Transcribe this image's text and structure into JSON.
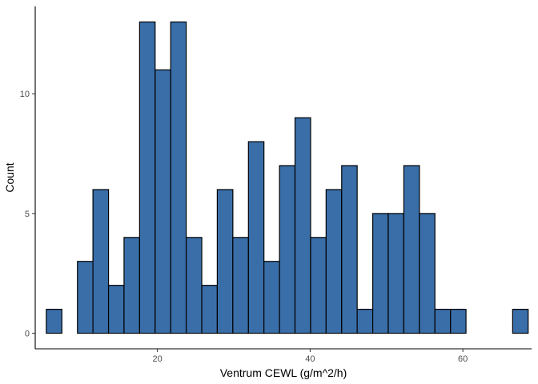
{
  "chart_data": {
    "type": "bar",
    "subtype": "histogram",
    "title": "",
    "xlabel": "Ventrum CEWL (g/m^2/h)",
    "ylabel": "Count",
    "xlim": [
      4.0,
      69.0
    ],
    "ylim": [
      -0.65,
      13.65
    ],
    "x_ticks": [
      20,
      40,
      60
    ],
    "y_ticks": [
      0,
      5,
      10
    ],
    "grid": false,
    "bin_width": 2.035,
    "bins": [
      {
        "x_start": 5.45,
        "x_end": 7.49,
        "count": 1
      },
      {
        "x_start": 7.49,
        "x_end": 9.53,
        "count": 0
      },
      {
        "x_start": 9.53,
        "x_end": 11.56,
        "count": 3
      },
      {
        "x_start": 11.56,
        "x_end": 13.6,
        "count": 6
      },
      {
        "x_start": 13.6,
        "x_end": 15.63,
        "count": 2
      },
      {
        "x_start": 15.63,
        "x_end": 17.67,
        "count": 4
      },
      {
        "x_start": 17.67,
        "x_end": 19.7,
        "count": 13
      },
      {
        "x_start": 19.7,
        "x_end": 21.74,
        "count": 11
      },
      {
        "x_start": 21.74,
        "x_end": 23.77,
        "count": 13
      },
      {
        "x_start": 23.77,
        "x_end": 25.81,
        "count": 4
      },
      {
        "x_start": 25.81,
        "x_end": 27.84,
        "count": 2
      },
      {
        "x_start": 27.84,
        "x_end": 29.88,
        "count": 6
      },
      {
        "x_start": 29.88,
        "x_end": 31.92,
        "count": 4
      },
      {
        "x_start": 31.92,
        "x_end": 33.95,
        "count": 8
      },
      {
        "x_start": 33.95,
        "x_end": 35.99,
        "count": 3
      },
      {
        "x_start": 35.99,
        "x_end": 38.02,
        "count": 7
      },
      {
        "x_start": 38.02,
        "x_end": 40.06,
        "count": 9
      },
      {
        "x_start": 40.06,
        "x_end": 42.09,
        "count": 4
      },
      {
        "x_start": 42.09,
        "x_end": 44.13,
        "count": 6
      },
      {
        "x_start": 44.13,
        "x_end": 46.16,
        "count": 7
      },
      {
        "x_start": 46.16,
        "x_end": 48.2,
        "count": 1
      },
      {
        "x_start": 48.2,
        "x_end": 50.23,
        "count": 5
      },
      {
        "x_start": 50.23,
        "x_end": 52.27,
        "count": 5
      },
      {
        "x_start": 52.27,
        "x_end": 54.31,
        "count": 7
      },
      {
        "x_start": 54.31,
        "x_end": 56.34,
        "count": 5
      },
      {
        "x_start": 56.34,
        "x_end": 58.38,
        "count": 1
      },
      {
        "x_start": 58.38,
        "x_end": 60.41,
        "count": 1
      },
      {
        "x_start": 60.41,
        "x_end": 62.45,
        "count": 0
      },
      {
        "x_start": 62.45,
        "x_end": 64.48,
        "count": 0
      },
      {
        "x_start": 64.48,
        "x_end": 66.52,
        "count": 0
      },
      {
        "x_start": 66.52,
        "x_end": 68.55,
        "count": 1
      }
    ],
    "colors": {
      "bar_fill": "#3a6ea8",
      "bar_stroke": "#000000",
      "axis": "#000000",
      "tick_text": "#4d4d4d",
      "title_text": "#000000"
    }
  }
}
